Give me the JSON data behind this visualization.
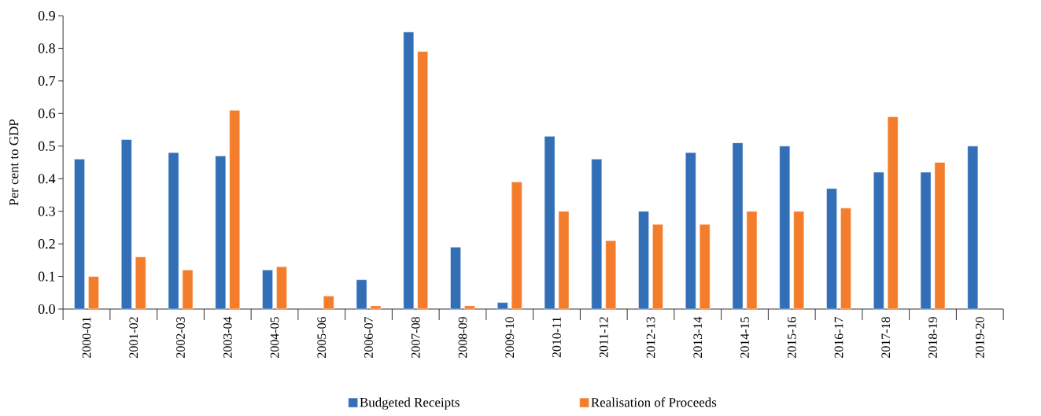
{
  "chart_data": {
    "type": "bar",
    "ylabel": "Per cent to GDP",
    "categories": [
      "2000-01",
      "2001-02",
      "2002-03",
      "2003-04",
      "2004-05",
      "2005-06",
      "2006-07",
      "2007-08",
      "2008-09",
      "2009-10",
      "2010-11",
      "2011-12",
      "2012-13",
      "2013-14",
      "2014-15",
      "2015-16",
      "2016-17",
      "2017-18",
      "2018-19",
      "2019-20"
    ],
    "series": [
      {
        "name": "Budgeted Receipts",
        "color": "#336fb7",
        "values": [
          0.46,
          0.52,
          0.48,
          0.47,
          0.12,
          null,
          0.09,
          0.85,
          0.19,
          0.02,
          0.53,
          0.46,
          0.3,
          0.48,
          0.51,
          0.5,
          0.37,
          0.42,
          0.42,
          0.5
        ]
      },
      {
        "name": "Realisation of Proceeds",
        "color": "#f47d2b",
        "values": [
          0.1,
          0.16,
          0.12,
          0.61,
          0.13,
          0.04,
          0.01,
          0.79,
          0.01,
          0.39,
          0.3,
          0.21,
          0.26,
          0.26,
          0.3,
          0.3,
          0.31,
          0.59,
          0.45,
          null
        ]
      }
    ],
    "ylim": [
      0,
      0.9
    ],
    "yticks": [
      {
        "value": 0,
        "label": "0.0"
      },
      {
        "value": 0.1,
        "label": "0.1"
      },
      {
        "value": 0.2,
        "label": "0.2"
      },
      {
        "value": 0.3,
        "label": "0.3"
      },
      {
        "value": 0.4,
        "label": "0.4"
      },
      {
        "value": 0.5,
        "label": "0.5"
      },
      {
        "value": 0.6,
        "label": "0.6"
      },
      {
        "value": 0.7,
        "label": "0.7"
      },
      {
        "value": 0.8,
        "label": "0.8"
      },
      {
        "value": 0.9,
        "label": "0.9"
      }
    ],
    "grid": false,
    "legend": "bottom"
  }
}
